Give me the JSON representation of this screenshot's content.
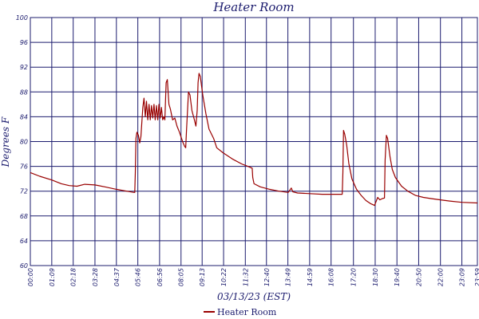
{
  "chart_data": {
    "type": "line",
    "title": "Heater Room",
    "xlabel": "03/13/23 (EST)",
    "ylabel": "Degrees F",
    "ylim": [
      60,
      100
    ],
    "yticks": [
      60,
      64,
      68,
      72,
      76,
      80,
      84,
      88,
      92,
      96,
      100
    ],
    "xlim": [
      0,
      1439
    ],
    "xticks": [
      {
        "label": "00:00",
        "minute": 0
      },
      {
        "label": "01:09",
        "minute": 69
      },
      {
        "label": "02:18",
        "minute": 138
      },
      {
        "label": "03:28",
        "minute": 208
      },
      {
        "label": "04:37",
        "minute": 277
      },
      {
        "label": "05:46",
        "minute": 346
      },
      {
        "label": "06:56",
        "minute": 416
      },
      {
        "label": "08:05",
        "minute": 485
      },
      {
        "label": "09:13",
        "minute": 553
      },
      {
        "label": "10:22",
        "minute": 622
      },
      {
        "label": "11:32",
        "minute": 692
      },
      {
        "label": "12:40",
        "minute": 760
      },
      {
        "label": "13:49",
        "minute": 829
      },
      {
        "label": "14:59",
        "minute": 899
      },
      {
        "label": "16:08",
        "minute": 968
      },
      {
        "label": "17:20",
        "minute": 1040
      },
      {
        "label": "18:30",
        "minute": 1110
      },
      {
        "label": "19:40",
        "minute": 1180
      },
      {
        "label": "20:50",
        "minute": 1250
      },
      {
        "label": "22:00",
        "minute": 1320
      },
      {
        "label": "23:09",
        "minute": 1389
      },
      {
        "label": "23:59",
        "minute": 1439
      }
    ],
    "grid": true,
    "legend_position": "bottom-center",
    "series": [
      {
        "name": "Heater Room",
        "color": "#990000",
        "points": [
          [
            0,
            75.0
          ],
          [
            30,
            74.4
          ],
          [
            69,
            73.8
          ],
          [
            100,
            73.2
          ],
          [
            125,
            72.9
          ],
          [
            150,
            72.8
          ],
          [
            175,
            73.1
          ],
          [
            208,
            73.0
          ],
          [
            240,
            72.7
          ],
          [
            277,
            72.3
          ],
          [
            310,
            72.0
          ],
          [
            334,
            71.8
          ],
          [
            336,
            71.8
          ],
          [
            338,
            75.0
          ],
          [
            340,
            80.5
          ],
          [
            343,
            81.5
          ],
          [
            348,
            81.0
          ],
          [
            352,
            79.8
          ],
          [
            356,
            80.8
          ],
          [
            362,
            85.5
          ],
          [
            366,
            87.0
          ],
          [
            370,
            84.0
          ],
          [
            374,
            86.5
          ],
          [
            378,
            83.5
          ],
          [
            382,
            86.0
          ],
          [
            386,
            83.5
          ],
          [
            390,
            85.8
          ],
          [
            394,
            83.8
          ],
          [
            398,
            86.0
          ],
          [
            402,
            83.5
          ],
          [
            406,
            85.8
          ],
          [
            410,
            83.5
          ],
          [
            414,
            86.0
          ],
          [
            418,
            83.8
          ],
          [
            422,
            85.5
          ],
          [
            426,
            83.5
          ],
          [
            430,
            84.0
          ],
          [
            433,
            83.5
          ],
          [
            437,
            89.5
          ],
          [
            441,
            90.0
          ],
          [
            446,
            86.0
          ],
          [
            451,
            85.2
          ],
          [
            458,
            83.5
          ],
          [
            465,
            83.8
          ],
          [
            472,
            82.5
          ],
          [
            480,
            81.5
          ],
          [
            490,
            80.0
          ],
          [
            497,
            79.2
          ],
          [
            500,
            79.0
          ],
          [
            503,
            82.0
          ],
          [
            509,
            88.0
          ],
          [
            514,
            87.5
          ],
          [
            520,
            85.0
          ],
          [
            528,
            83.5
          ],
          [
            533,
            82.5
          ],
          [
            537,
            85.0
          ],
          [
            540,
            89.5
          ],
          [
            543,
            91.0
          ],
          [
            547,
            90.5
          ],
          [
            555,
            87.5
          ],
          [
            565,
            84.5
          ],
          [
            575,
            82.0
          ],
          [
            590,
            80.5
          ],
          [
            600,
            79.0
          ],
          [
            620,
            78.2
          ],
          [
            650,
            77.2
          ],
          [
            680,
            76.4
          ],
          [
            700,
            76.0
          ],
          [
            714,
            75.7
          ],
          [
            716,
            74.2
          ],
          [
            720,
            73.2
          ],
          [
            740,
            72.7
          ],
          [
            770,
            72.3
          ],
          [
            800,
            72.0
          ],
          [
            830,
            71.8
          ],
          [
            840,
            72.5
          ],
          [
            845,
            71.9
          ],
          [
            860,
            71.7
          ],
          [
            900,
            71.6
          ],
          [
            940,
            71.5
          ],
          [
            980,
            71.5
          ],
          [
            1004,
            71.5
          ],
          [
            1006,
            75.0
          ],
          [
            1008,
            81.8
          ],
          [
            1012,
            81.2
          ],
          [
            1018,
            79.5
          ],
          [
            1025,
            76.5
          ],
          [
            1035,
            74.0
          ],
          [
            1050,
            72.3
          ],
          [
            1065,
            71.3
          ],
          [
            1080,
            70.5
          ],
          [
            1095,
            70.0
          ],
          [
            1108,
            69.7
          ],
          [
            1112,
            70.2
          ],
          [
            1118,
            71.0
          ],
          [
            1125,
            70.6
          ],
          [
            1133,
            70.8
          ],
          [
            1140,
            70.9
          ],
          [
            1142,
            77.0
          ],
          [
            1146,
            81.0
          ],
          [
            1150,
            80.5
          ],
          [
            1158,
            77.5
          ],
          [
            1165,
            75.5
          ],
          [
            1175,
            74.2
          ],
          [
            1195,
            72.8
          ],
          [
            1215,
            72.0
          ],
          [
            1240,
            71.3
          ],
          [
            1265,
            71.0
          ],
          [
            1290,
            70.8
          ],
          [
            1320,
            70.6
          ],
          [
            1350,
            70.4
          ],
          [
            1389,
            70.2
          ],
          [
            1439,
            70.1
          ]
        ]
      }
    ]
  }
}
